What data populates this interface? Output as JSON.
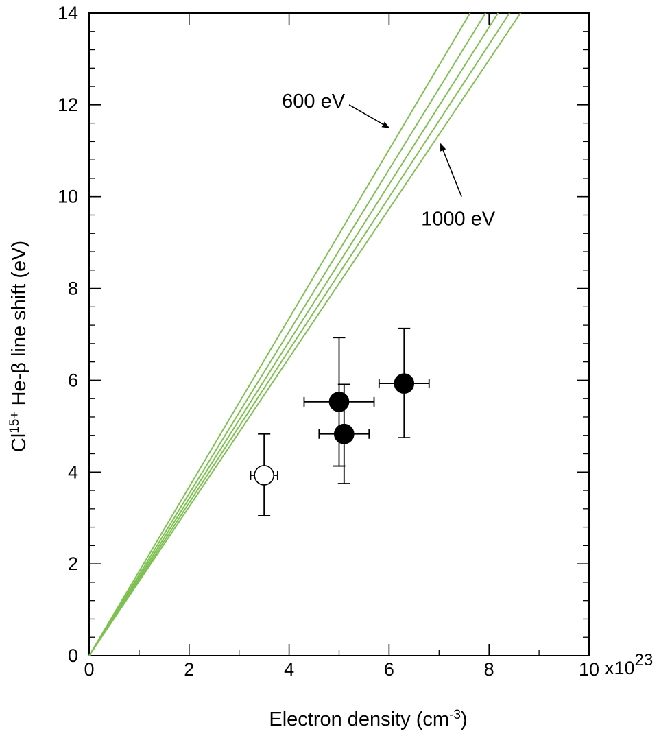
{
  "chart_data": {
    "type": "scatter",
    "title": "",
    "xlabel": {
      "main": "Electron density (cm",
      "sup": "-3",
      "tail": ")"
    },
    "ylabel": {
      "pre": "Cl",
      "sup": "15+",
      "main": " He-β line shift (eV)"
    },
    "x_multiplier": {
      "main": "x10",
      "sup": "23"
    },
    "xlim": [
      0,
      10
    ],
    "ylim": [
      0,
      14
    ],
    "x_ticks": [
      0,
      2,
      4,
      6,
      8,
      10
    ],
    "y_ticks": [
      0,
      2,
      4,
      6,
      8,
      10,
      12,
      14
    ],
    "x_tick_labels": [
      "0",
      "2",
      "4",
      "6",
      "8",
      "10"
    ],
    "y_tick_labels": [
      "0",
      "2",
      "4",
      "6",
      "8",
      "10",
      "12",
      "14"
    ],
    "grid": false,
    "model_lines": {
      "color": "#7dc250",
      "curves": [
        {
          "x": [
            0,
            7.62
          ],
          "y": [
            0,
            14
          ]
        },
        {
          "x": [
            0,
            7.93
          ],
          "y": [
            0,
            14
          ]
        },
        {
          "x": [
            0,
            8.18
          ],
          "y": [
            0,
            14
          ]
        },
        {
          "x": [
            0,
            8.41
          ],
          "y": [
            0,
            14
          ]
        },
        {
          "x": [
            0,
            8.63
          ],
          "y": [
            0,
            14
          ]
        }
      ]
    },
    "series": [
      {
        "marker": "open-circle",
        "points": [
          {
            "x": 3.5,
            "y": 3.93,
            "xerr": 0.27,
            "yerr_low": 0.88,
            "yerr_high": 0.9
          }
        ]
      },
      {
        "marker": "filled-circle",
        "points": [
          {
            "x": 5.0,
            "y": 5.53,
            "xerr": 0.7,
            "yerr_low": 1.4,
            "yerr_high": 1.4
          },
          {
            "x": 5.1,
            "y": 4.83,
            "xerr": 0.5,
            "yerr_low": 1.08,
            "yerr_high": 1.08
          },
          {
            "x": 6.3,
            "y": 5.93,
            "xerr": 0.5,
            "yerr_low": 1.18,
            "yerr_high": 1.2
          }
        ]
      }
    ],
    "annotations": [
      {
        "text": "600 eV",
        "arrow_from": [
          5.2,
          12.0
        ],
        "arrow_to": [
          6.0,
          11.5
        ]
      },
      {
        "text": "1000 eV",
        "arrow_from": [
          7.45,
          10.0
        ],
        "arrow_to": [
          7.03,
          11.15
        ]
      }
    ]
  }
}
